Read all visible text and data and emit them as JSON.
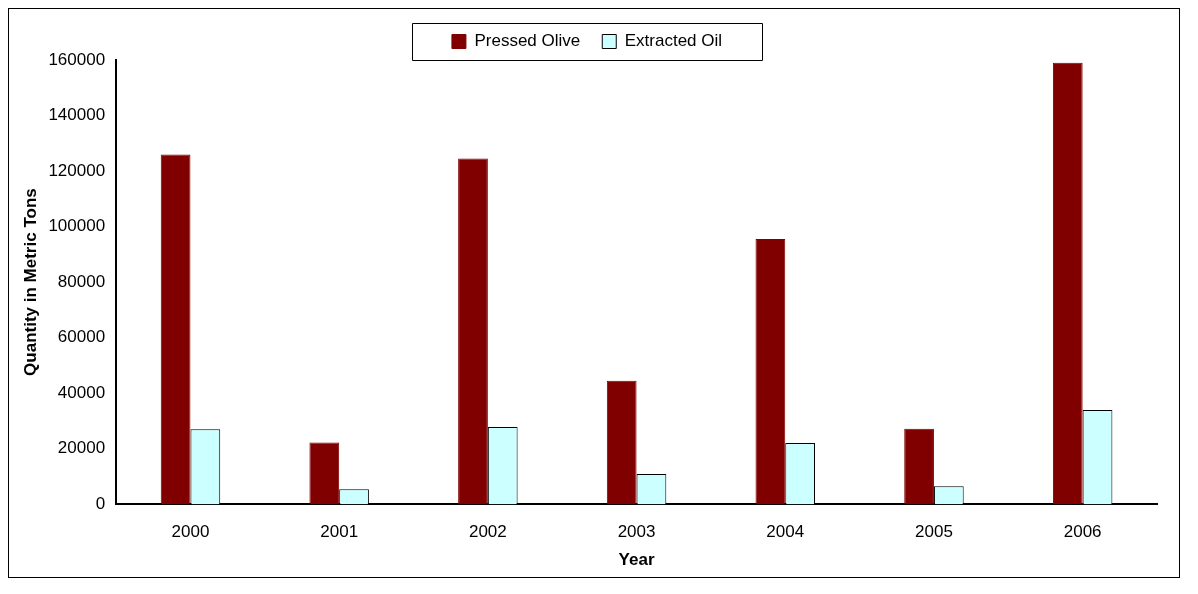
{
  "chart_data": {
    "type": "bar",
    "xlabel": "Year",
    "ylabel": "Quantity in Metric Tons",
    "categories": [
      "2000",
      "2001",
      "2002",
      "2003",
      "2004",
      "2005",
      "2006"
    ],
    "series": [
      {
        "name": "Pressed Olive",
        "color": "#800000",
        "values": [
          126000,
          22200,
          124500,
          44500,
          95500,
          27200,
          159000
        ]
      },
      {
        "name": "Extracted Oil",
        "color": "#ccffff",
        "values": [
          27000,
          5400,
          27800,
          10900,
          22000,
          6500,
          33900
        ]
      }
    ],
    "ylim": [
      0,
      160000
    ],
    "yticks": [
      0,
      20000,
      40000,
      60000,
      80000,
      100000,
      120000,
      140000,
      160000
    ],
    "grid": false,
    "legend": "top"
  }
}
